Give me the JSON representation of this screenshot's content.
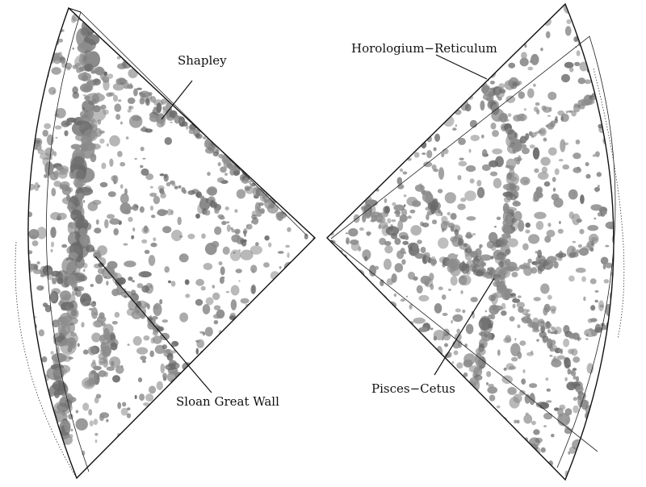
{
  "labels": {
    "shapley": "Shapley",
    "sloan_great_wall": "Sloan Great Wall",
    "horologium_reticulum": "Horologium−Reticulum",
    "pisces_cetus": "Pisces−Cetus"
  },
  "colors": {
    "background": "#ffffff",
    "structure_fill": "#8c8c8c",
    "structure_dark": "#6a6a6a",
    "outline": "#111111"
  }
}
